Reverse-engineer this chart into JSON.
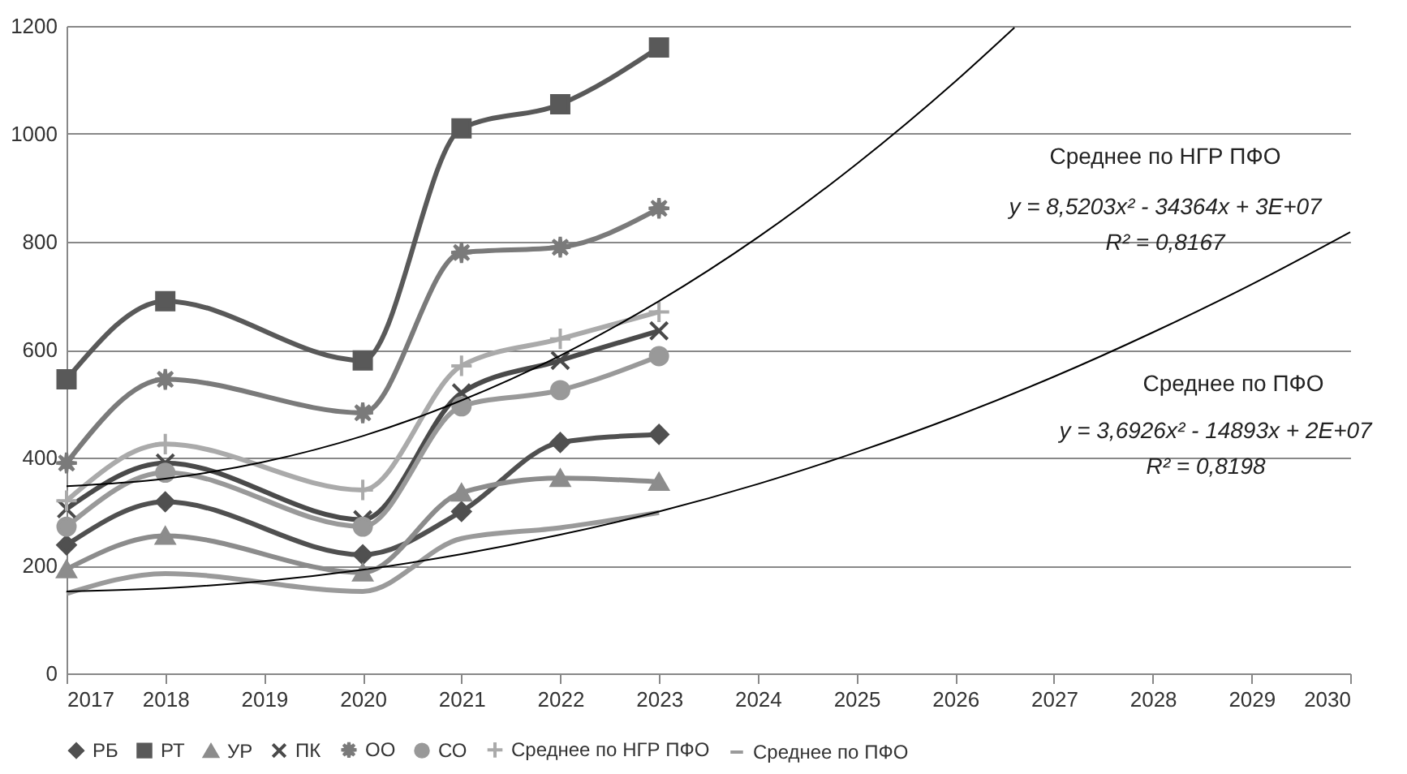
{
  "chart_data": {
    "type": "line",
    "xlim": [
      2017,
      2030
    ],
    "xticks": [
      2017,
      2018,
      2019,
      2020,
      2021,
      2022,
      2023,
      2024,
      2025,
      2026,
      2027,
      2028,
      2029,
      2030
    ],
    "ylim": [
      0,
      1200
    ],
    "yticks": [
      0,
      200,
      400,
      600,
      800,
      1000,
      1200
    ],
    "grid": "y",
    "legend": "bottom",
    "line_style": "solid",
    "series": [
      {
        "name": "РБ",
        "color": "#505050",
        "marker": "diamond",
        "x": [
          2017,
          2018,
          2020,
          2021,
          2022,
          2023
        ],
        "values": [
          238,
          318,
          220,
          300,
          428,
          443
        ]
      },
      {
        "name": "РТ",
        "color": "#595959",
        "marker": "square",
        "x": [
          2017,
          2018,
          2020,
          2021,
          2022,
          2023
        ],
        "values": [
          545,
          690,
          580,
          1010,
          1055,
          1160
        ]
      },
      {
        "name": "УР",
        "color": "#8c8c8c",
        "marker": "triangle",
        "x": [
          2017,
          2018,
          2020,
          2021,
          2022,
          2023
        ],
        "values": [
          193,
          255,
          187,
          335,
          362,
          355
        ]
      },
      {
        "name": "ПК",
        "color": "#4a4a4a",
        "marker": "x",
        "x": [
          2017,
          2018,
          2020,
          2021,
          2022,
          2023
        ],
        "values": [
          305,
          390,
          285,
          520,
          580,
          635
        ]
      },
      {
        "name": "ОО",
        "color": "#7a7a7a",
        "marker": "star",
        "x": [
          2017,
          2018,
          2020,
          2021,
          2022,
          2023
        ],
        "values": [
          390,
          545,
          483,
          780,
          790,
          862
        ]
      },
      {
        "name": "СО",
        "color": "#999999",
        "marker": "circle",
        "x": [
          2017,
          2018,
          2020,
          2021,
          2022,
          2023
        ],
        "values": [
          272,
          372,
          272,
          495,
          525,
          588
        ]
      },
      {
        "name": "Среднее по НГР ПФО",
        "color": "#aaaaaa",
        "marker": "cross",
        "x": [
          2017,
          2018,
          2020,
          2021,
          2022,
          2023
        ],
        "values": [
          320,
          425,
          340,
          570,
          620,
          670
        ]
      },
      {
        "name": "Среднее по ПФО",
        "color": "#9a9a9a",
        "marker": "none",
        "x": [
          2017,
          2018,
          2020,
          2021,
          2022,
          2023
        ],
        "values": [
          148,
          185,
          152,
          250,
          270,
          298
        ]
      },
      {
        "color": "#000000",
        "x": [
          2017,
          2018,
          2019,
          2020,
          2021,
          2022,
          2023,
          2024,
          2025,
          2026,
          2026.6
        ],
        "values": [
          347,
          361,
          392,
          440,
          506,
          589,
          690,
          808,
          944,
          1097,
          1197
        ]
      },
      {
        "color": "#000000",
        "x": [
          2017,
          2018,
          2019,
          2020,
          2021,
          2022,
          2023,
          2024,
          2025,
          2026,
          2027,
          2028,
          2029,
          2030
        ],
        "values": [
          152,
          158,
          171,
          192,
          221,
          257,
          300,
          351,
          410,
          476,
          550,
          632,
          721,
          818
        ]
      }
    ],
    "annotations": [
      "Среднее по НГР ПФО",
      "y = 8,5203x² - 34364x + 3E+07",
      "R² = 0,8167",
      "Среднее по ПФО",
      "y = 3,6926x² - 14893x + 2E+07",
      "R² = 0,8198"
    ]
  }
}
